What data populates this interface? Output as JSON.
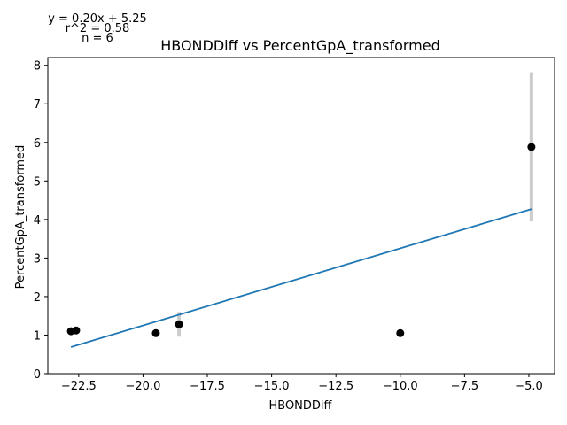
{
  "chart_data": {
    "type": "scatter",
    "title": "HBONDDiff vs PercentGpA_transformed",
    "xlabel": "HBONDDiff",
    "ylabel": "PercentGpA_transformed",
    "xlim": [
      -23.7,
      -4.0
    ],
    "ylim": [
      0,
      8.2
    ],
    "xticks": [
      -22.5,
      -20.0,
      -17.5,
      -15.0,
      -12.5,
      -10.0,
      -7.5,
      -5.0
    ],
    "xtick_labels": [
      "−22.5",
      "−20.0",
      "−17.5",
      "−15.0",
      "−12.5",
      "−10.0",
      "−7.5",
      "−5.0"
    ],
    "yticks": [
      0,
      1,
      2,
      3,
      4,
      5,
      6,
      7,
      8
    ],
    "ytick_labels": [
      "0",
      "1",
      "2",
      "3",
      "4",
      "5",
      "6",
      "7",
      "8"
    ],
    "grid": false,
    "points": [
      {
        "x": -22.8,
        "y": 1.1
      },
      {
        "x": -22.6,
        "y": 1.12
      },
      {
        "x": -19.5,
        "y": 1.05
      },
      {
        "x": -18.6,
        "y": 1.28
      },
      {
        "x": -10.0,
        "y": 1.05
      },
      {
        "x": -4.9,
        "y": 5.88
      }
    ],
    "error_bars": [
      {
        "x": -18.6,
        "low": 0.96,
        "high": 1.6
      },
      {
        "x": -4.9,
        "low": 3.95,
        "high": 7.82
      }
    ],
    "fit_line": {
      "slope": 0.2,
      "intercept": 5.25,
      "x": [
        -22.8,
        -4.9
      ]
    },
    "annotations": [
      "y = 0.20x + 5.25",
      "r^2 = 0.58",
      "n = 6"
    ],
    "colors": {
      "points": "#000000",
      "fit": "#1f77b4",
      "error": "#cccccc"
    }
  }
}
